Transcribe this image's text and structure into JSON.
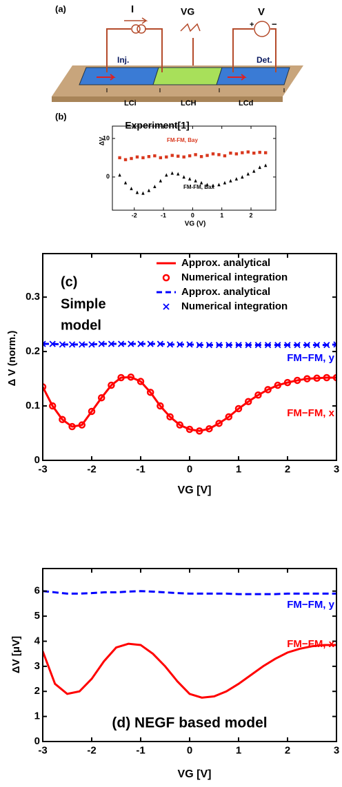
{
  "diagram": {
    "panel": "(a)",
    "current": "I",
    "gate": "VG",
    "voltage": "V",
    "plus": "+",
    "minus": "−",
    "injector": "Inj.",
    "detector": "Det.",
    "lengths": [
      "LCi",
      "LCH",
      "LCd"
    ]
  },
  "chart_data": [
    {
      "type": "line",
      "title": "Experiment[1]",
      "xlabel": "VG (V)",
      "ylabel": "ΔV",
      "annotations": [
        "(b)"
      ],
      "x": [
        -2.5,
        -2.3,
        -2.1,
        -1.9,
        -1.7,
        -1.5,
        -1.3,
        -1.1,
        -0.9,
        -0.7,
        -0.5,
        -0.3,
        -0.1,
        0.1,
        0.3,
        0.5,
        0.7,
        0.9,
        1.1,
        1.3,
        1.5,
        1.7,
        1.9,
        2.1,
        2.3,
        2.5
      ],
      "xlim": [
        -2.75,
        2.85
      ],
      "xticks": [
        -2,
        -1,
        0,
        1,
        2
      ],
      "ylim": [
        -8.6,
        13.2
      ],
      "yticks": [
        0,
        10
      ],
      "series": [
        {
          "name": "FM-FM, Bay",
          "color": "#d9381e",
          "style": "square",
          "values": [
            5,
            4.5,
            4.8,
            5.2,
            5,
            5.3,
            5.5,
            5,
            5.2,
            5.6,
            5.4,
            5.2,
            5.5,
            5.8,
            5.3,
            5.6,
            6,
            5.8,
            5.5,
            6.2,
            6,
            6.3,
            6.5,
            6.2,
            6.4,
            6.3
          ]
        },
        {
          "name": "FM-FM, Bax",
          "color": "#000000",
          "style": "triangle",
          "values": [
            0.5,
            -1.5,
            -3,
            -4,
            -4.2,
            -3.5,
            -2.5,
            -1,
            0.5,
            1,
            0.8,
            0,
            -0.5,
            -1,
            -1.5,
            -2,
            -2.2,
            -2,
            -1.5,
            -1,
            -0.5,
            0,
            0.8,
            1.5,
            2.5,
            3
          ]
        }
      ]
    },
    {
      "type": "line",
      "xlabel": "VG [V]",
      "ylabel": "Δ V (norm.)",
      "annotations": [
        "(c)",
        "Simple",
        "model",
        "FM−FM, y",
        "FM−FM, x"
      ],
      "x": [
        -3,
        -2.8,
        -2.6,
        -2.4,
        -2.2,
        -2,
        -1.8,
        -1.6,
        -1.4,
        -1.2,
        -1,
        -0.8,
        -0.6,
        -0.4,
        -0.2,
        0,
        0.2,
        0.4,
        0.6,
        0.8,
        1,
        1.2,
        1.4,
        1.6,
        1.8,
        2,
        2.2,
        2.4,
        2.6,
        2.8,
        3
      ],
      "xlim": [
        -3,
        3
      ],
      "xticks": [
        -3,
        -2,
        -1,
        0,
        1,
        2,
        3
      ],
      "ylim": [
        0,
        0.38
      ],
      "yticks": [
        0,
        0.1,
        0.2,
        0.3
      ],
      "series": [
        {
          "name": "Approx. analytical",
          "color": "#ff0000",
          "style": "line",
          "values": [
            0.135,
            0.1,
            0.075,
            0.062,
            0.065,
            0.09,
            0.115,
            0.138,
            0.152,
            0.153,
            0.145,
            0.125,
            0.1,
            0.08,
            0.065,
            0.057,
            0.054,
            0.058,
            0.068,
            0.08,
            0.095,
            0.108,
            0.12,
            0.13,
            0.138,
            0.143,
            0.147,
            0.15,
            0.151,
            0.152,
            0.152
          ]
        },
        {
          "name": "Numerical integration",
          "color": "#ff0000",
          "style": "circle",
          "values": [
            0.135,
            0.1,
            0.075,
            0.062,
            0.065,
            0.09,
            0.115,
            0.138,
            0.152,
            0.153,
            0.145,
            0.125,
            0.1,
            0.08,
            0.065,
            0.057,
            0.054,
            0.058,
            0.068,
            0.08,
            0.095,
            0.108,
            0.12,
            0.13,
            0.138,
            0.143,
            0.147,
            0.15,
            0.151,
            0.152,
            0.152
          ]
        },
        {
          "name": "Approx. analytical",
          "color": "#0000ff",
          "style": "dashed",
          "values": [
            0.214,
            0.214,
            0.213,
            0.213,
            0.213,
            0.213,
            0.214,
            0.214,
            0.214,
            0.214,
            0.214,
            0.214,
            0.214,
            0.213,
            0.213,
            0.213,
            0.212,
            0.212,
            0.212,
            0.212,
            0.212,
            0.212,
            0.212,
            0.212,
            0.212,
            0.212,
            0.212,
            0.212,
            0.212,
            0.212,
            0.213
          ]
        },
        {
          "name": "Numerical integration",
          "color": "#0000ff",
          "style": "cross",
          "values": [
            0.214,
            0.214,
            0.213,
            0.213,
            0.213,
            0.213,
            0.214,
            0.214,
            0.214,
            0.214,
            0.214,
            0.214,
            0.214,
            0.213,
            0.213,
            0.213,
            0.212,
            0.212,
            0.212,
            0.212,
            0.212,
            0.212,
            0.212,
            0.212,
            0.212,
            0.212,
            0.212,
            0.212,
            0.212,
            0.212,
            0.213
          ]
        }
      ]
    },
    {
      "type": "line",
      "xlabel": "VG [V]",
      "ylabel": "ΔV  [μV]",
      "annotations": [
        "FM−FM, y",
        "FM−FM, x",
        "(d) NEGF based model"
      ],
      "x": [
        -3,
        -2.75,
        -2.5,
        -2.25,
        -2,
        -1.75,
        -1.5,
        -1.25,
        -1,
        -0.75,
        -0.5,
        -0.25,
        0,
        0.25,
        0.5,
        0.75,
        1,
        1.25,
        1.5,
        1.75,
        2,
        2.25,
        2.5,
        2.75,
        3
      ],
      "xlim": [
        -3,
        3
      ],
      "xticks": [
        -3,
        -2,
        -1,
        0,
        1,
        2,
        3
      ],
      "ylim": [
        0,
        6.9
      ],
      "yticks": [
        0,
        1,
        2,
        3,
        4,
        5,
        6
      ],
      "series": [
        {
          "color": "#0000ff",
          "style": "dashed",
          "values": [
            6,
            5.95,
            5.9,
            5.9,
            5.92,
            5.95,
            5.95,
            5.98,
            6,
            5.98,
            5.95,
            5.92,
            5.9,
            5.9,
            5.9,
            5.9,
            5.88,
            5.88,
            5.88,
            5.88,
            5.9,
            5.9,
            5.9,
            5.9,
            5.9
          ]
        },
        {
          "color": "#ff0000",
          "style": "line",
          "values": [
            3.6,
            2.3,
            1.9,
            2,
            2.5,
            3.2,
            3.75,
            3.9,
            3.85,
            3.5,
            3,
            2.4,
            1.9,
            1.75,
            1.8,
            2,
            2.3,
            2.65,
            3,
            3.3,
            3.55,
            3.7,
            3.8,
            3.85,
            3.85
          ]
        }
      ]
    }
  ]
}
